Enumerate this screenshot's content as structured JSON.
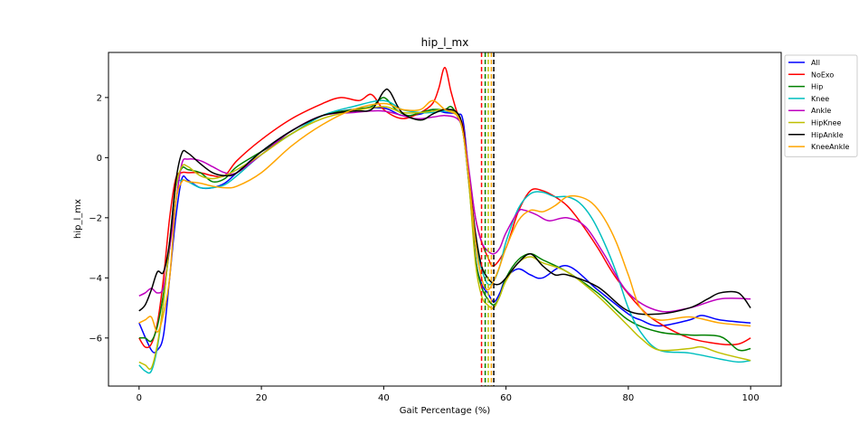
{
  "chart_data": {
    "type": "line",
    "title": "hip_l_mx",
    "xlabel": "Gait Percentage (%)",
    "ylabel": "hip_l_mx",
    "xlim": [
      -5,
      105
    ],
    "ylim": [
      -7.6,
      3.5
    ],
    "xticks": [
      0,
      20,
      40,
      60,
      80,
      100
    ],
    "yticks": [
      -6,
      -4,
      -2,
      0,
      2
    ],
    "grid": false,
    "legend_position": "outside-top-right",
    "series": [
      {
        "name": "All",
        "color": "#0000ff",
        "x": [
          0,
          2,
          3,
          4,
          5,
          6,
          7,
          8,
          10,
          12,
          14,
          16,
          20,
          25,
          30,
          35,
          40,
          43,
          46,
          48,
          50,
          52,
          53,
          54,
          55,
          56,
          57,
          58,
          59,
          60,
          62,
          64,
          66,
          70,
          75,
          80,
          82,
          85,
          90,
          92,
          95,
          100
        ],
        "y": [
          -5.5,
          -6.4,
          -6.4,
          -5.9,
          -4.0,
          -2.0,
          -0.7,
          -0.75,
          -1.0,
          -1.0,
          -0.85,
          -0.5,
          0.2,
          0.9,
          1.4,
          1.6,
          1.65,
          1.4,
          1.45,
          1.6,
          1.5,
          1.45,
          1.2,
          -0.8,
          -3.3,
          -4.2,
          -4.5,
          -4.8,
          -4.5,
          -4.0,
          -3.7,
          -3.9,
          -4.0,
          -3.6,
          -4.4,
          -5.2,
          -5.4,
          -5.6,
          -5.4,
          -5.25,
          -5.4,
          -5.5
        ]
      },
      {
        "name": "NoExo",
        "color": "#ff0000",
        "x": [
          0,
          1,
          2,
          3,
          4,
          5,
          6,
          7,
          8,
          10,
          12,
          14,
          16,
          20,
          25,
          30,
          33,
          36,
          38,
          40,
          43,
          46,
          48,
          49,
          50,
          51,
          52,
          53,
          54,
          55,
          56,
          57,
          58,
          60,
          62,
          64,
          66,
          68,
          70,
          72,
          75,
          78,
          82,
          85,
          90,
          95,
          98,
          100
        ],
        "y": [
          -6.0,
          -6.3,
          -6.2,
          -5.5,
          -4.0,
          -2.0,
          -0.7,
          -0.5,
          -0.5,
          -0.5,
          -0.6,
          -0.6,
          -0.1,
          0.6,
          1.3,
          1.8,
          2.0,
          1.9,
          2.1,
          1.6,
          1.3,
          1.5,
          1.8,
          2.3,
          3.0,
          2.2,
          1.5,
          1.0,
          -0.6,
          -2.0,
          -2.8,
          -3.3,
          -3.6,
          -3.0,
          -1.8,
          -1.1,
          -1.1,
          -1.3,
          -1.6,
          -2.1,
          -3.0,
          -4.0,
          -5.0,
          -5.5,
          -6.0,
          -6.2,
          -6.2,
          -6.0
        ]
      },
      {
        "name": "Hip",
        "color": "#008000",
        "x": [
          0,
          1,
          2,
          3,
          4,
          5,
          6,
          7,
          8,
          10,
          12,
          14,
          16,
          20,
          25,
          30,
          35,
          38,
          40,
          42,
          44,
          46,
          48,
          50,
          51,
          52,
          53,
          54,
          55,
          56,
          57,
          58,
          59,
          60,
          62,
          64,
          66,
          70,
          75,
          80,
          85,
          90,
          95,
          98,
          100
        ],
        "y": [
          -6.0,
          -6.0,
          -6.1,
          -5.6,
          -4.5,
          -3.0,
          -1.0,
          -0.35,
          -0.4,
          -0.5,
          -0.8,
          -0.7,
          -0.3,
          0.2,
          0.8,
          1.4,
          1.6,
          1.7,
          2.0,
          1.6,
          1.4,
          1.5,
          1.6,
          1.6,
          1.7,
          1.4,
          0.8,
          -1.0,
          -3.3,
          -4.3,
          -4.7,
          -4.9,
          -4.6,
          -4.0,
          -3.4,
          -3.2,
          -3.4,
          -3.8,
          -4.5,
          -5.4,
          -5.8,
          -5.9,
          -5.95,
          -6.4,
          -6.35
        ]
      },
      {
        "name": "Knee",
        "color": "#00bfbf",
        "x": [
          0,
          1,
          2,
          3,
          4,
          5,
          6,
          7,
          8,
          10,
          12,
          14,
          16,
          20,
          25,
          30,
          35,
          40,
          43,
          46,
          48,
          50,
          52,
          53,
          54,
          55,
          56,
          57,
          58,
          59,
          60,
          62,
          64,
          66,
          68,
          70,
          72,
          74,
          76,
          78,
          80,
          82,
          85,
          90,
          95,
          98,
          100
        ],
        "y": [
          -6.9,
          -7.1,
          -7.1,
          -6.3,
          -4.8,
          -2.8,
          -1.0,
          -0.75,
          -0.8,
          -1.0,
          -1.0,
          -0.9,
          -0.6,
          0.1,
          0.8,
          1.4,
          1.7,
          1.9,
          1.6,
          1.5,
          1.5,
          1.55,
          1.4,
          0.8,
          -0.9,
          -2.8,
          -3.7,
          -4.2,
          -4.1,
          -3.6,
          -2.8,
          -1.7,
          -1.2,
          -1.15,
          -1.3,
          -1.3,
          -1.5,
          -2.0,
          -2.8,
          -3.8,
          -5.0,
          -5.8,
          -6.4,
          -6.5,
          -6.7,
          -6.8,
          -6.75
        ]
      },
      {
        "name": "Ankle",
        "color": "#bf00bf",
        "x": [
          0,
          1,
          2,
          3,
          4,
          5,
          6,
          7,
          8,
          10,
          12,
          14,
          16,
          20,
          25,
          30,
          35,
          40,
          45,
          48,
          50,
          52,
          53,
          54,
          55,
          56,
          57,
          58,
          59,
          60,
          62,
          63,
          65,
          67,
          70,
          73,
          76,
          80,
          85,
          90,
          95,
          100
        ],
        "y": [
          -4.6,
          -4.5,
          -4.35,
          -4.5,
          -4.3,
          -3.0,
          -1.5,
          -0.2,
          -0.05,
          -0.1,
          -0.3,
          -0.5,
          -0.5,
          0.1,
          0.9,
          1.4,
          1.5,
          1.55,
          1.3,
          1.35,
          1.4,
          1.3,
          0.9,
          -0.5,
          -2.0,
          -2.8,
          -3.1,
          -3.2,
          -3.0,
          -2.5,
          -1.8,
          -1.75,
          -1.9,
          -2.1,
          -2.0,
          -2.3,
          -3.2,
          -4.5,
          -5.1,
          -5.0,
          -4.7,
          -4.7
        ]
      },
      {
        "name": "HipKnee",
        "color": "#bfbf00",
        "x": [
          0,
          1,
          2,
          3,
          4,
          5,
          6,
          7,
          8,
          10,
          12,
          14,
          16,
          20,
          25,
          30,
          35,
          40,
          43,
          46,
          48,
          50,
          52,
          53,
          54,
          55,
          56,
          57,
          58,
          59,
          60,
          62,
          64,
          66,
          70,
          75,
          80,
          82,
          85,
          90,
          92,
          95,
          100
        ],
        "y": [
          -6.8,
          -6.9,
          -7.0,
          -6.2,
          -4.8,
          -2.8,
          -1.0,
          -0.3,
          -0.3,
          -0.6,
          -0.7,
          -0.6,
          -0.4,
          0.1,
          0.8,
          1.3,
          1.55,
          1.7,
          1.5,
          1.5,
          1.55,
          1.6,
          1.45,
          0.8,
          -1.0,
          -3.5,
          -4.6,
          -4.9,
          -5.0,
          -4.6,
          -4.1,
          -3.5,
          -3.3,
          -3.5,
          -3.8,
          -4.6,
          -5.6,
          -6.0,
          -6.4,
          -6.35,
          -6.3,
          -6.5,
          -6.75
        ]
      },
      {
        "name": "HipAnkle",
        "color": "#000000",
        "x": [
          0,
          1,
          2,
          3,
          4,
          5,
          6,
          7,
          8,
          10,
          12,
          14,
          16,
          20,
          25,
          30,
          35,
          38,
          40,
          41,
          43,
          46,
          48,
          50,
          52,
          53,
          54,
          55,
          56,
          57,
          58,
          59,
          60,
          62,
          64,
          66,
          68,
          70,
          75,
          80,
          85,
          90,
          93,
          95,
          98,
          100
        ],
        "y": [
          -5.1,
          -4.9,
          -4.4,
          -3.8,
          -3.8,
          -2.8,
          -0.8,
          0.15,
          0.15,
          -0.2,
          -0.5,
          -0.6,
          -0.5,
          0.2,
          0.9,
          1.4,
          1.55,
          1.6,
          2.2,
          2.2,
          1.5,
          1.25,
          1.45,
          1.6,
          1.5,
          0.9,
          -0.8,
          -2.5,
          -3.6,
          -4.0,
          -4.2,
          -4.2,
          -4.0,
          -3.5,
          -3.2,
          -3.6,
          -3.9,
          -3.9,
          -4.3,
          -5.1,
          -5.2,
          -5.0,
          -4.7,
          -4.5,
          -4.5,
          -5.0
        ]
      },
      {
        "name": "KneeAnkle",
        "color": "#ffa500",
        "x": [
          0,
          1,
          2,
          3,
          4,
          5,
          6,
          7,
          8,
          10,
          12,
          14,
          16,
          20,
          25,
          30,
          35,
          40,
          43,
          46,
          48,
          50,
          52,
          53,
          54,
          55,
          56,
          57,
          58,
          59,
          60,
          62,
          64,
          66,
          68,
          70,
          72,
          74,
          76,
          78,
          80,
          82,
          85,
          90,
          95,
          100
        ],
        "y": [
          -5.5,
          -5.4,
          -5.3,
          -5.8,
          -5.2,
          -4.0,
          -1.5,
          -0.8,
          -0.8,
          -0.85,
          -0.95,
          -1.0,
          -0.95,
          -0.5,
          0.4,
          1.1,
          1.6,
          1.8,
          1.6,
          1.6,
          1.9,
          1.6,
          1.4,
          0.8,
          -0.8,
          -2.8,
          -4.0,
          -4.4,
          -4.1,
          -3.6,
          -3.0,
          -2.1,
          -1.75,
          -1.8,
          -1.6,
          -1.3,
          -1.3,
          -1.5,
          -2.0,
          -2.8,
          -3.9,
          -5.0,
          -5.4,
          -5.3,
          -5.5,
          -5.6
        ]
      }
    ],
    "vertical_lines": [
      {
        "x": 56.0,
        "color": "#ff0000",
        "style": "dashed"
      },
      {
        "x": 56.6,
        "color": "#008000",
        "style": "dashed"
      },
      {
        "x": 57.1,
        "color": "#bfbf00",
        "style": "dashed"
      },
      {
        "x": 57.6,
        "color": "#ffa500",
        "style": "dashed"
      },
      {
        "x": 58.0,
        "color": "#000000",
        "style": "dashed"
      }
    ]
  }
}
